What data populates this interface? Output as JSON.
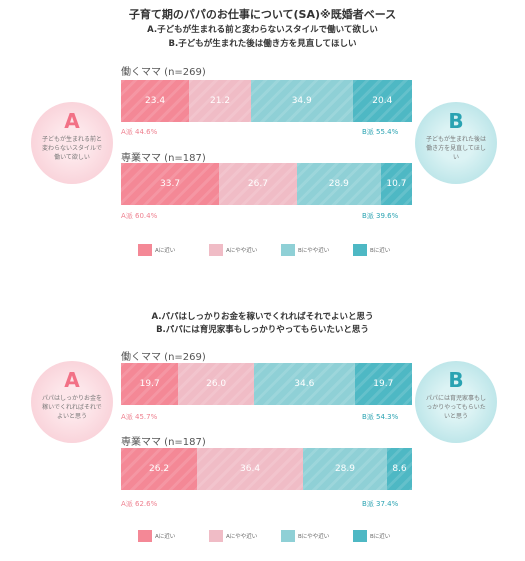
{
  "title": "子育て期のパパのお仕事について(SA)※既婚者ベース",
  "colors": {
    "a_close": "#f48896",
    "a_rather": "#f0bcc6",
    "b_rather": "#8fd0d6",
    "b_close": "#4eb8c4"
  },
  "legend": [
    "Aに近い",
    "Aにやや近い",
    "Bにやや近い",
    "Bに近い"
  ],
  "chart_data": [
    {
      "type": "bar",
      "stacked": true,
      "orientation": "horizontal",
      "subtitle_a": "A.子どもが生まれる前と変わらないスタイルで働いて欲しい",
      "subtitle_b": "B.子どもが生まれた後は働き方を見直してほしい",
      "bubble_a": {
        "letter": "A",
        "text": "子どもが生まれる前と変わらないスタイルで働いて欲しい"
      },
      "bubble_b": {
        "letter": "B",
        "text": "子どもが生まれた後は働き方を見直してほしい"
      },
      "series": [
        "Aに近い",
        "Aにやや近い",
        "Bにやや近い",
        "Bに近い"
      ],
      "groups": [
        {
          "label": "働くママ (n=269)",
          "values": [
            23.4,
            21.2,
            34.9,
            20.4
          ],
          "a_label": "A派 44.6%",
          "b_label": "B派 55.4%"
        },
        {
          "label": "専業ママ (n=187)",
          "values": [
            33.7,
            26.7,
            28.9,
            10.7
          ],
          "a_label": "A派 60.4%",
          "b_label": "B派 39.6%"
        }
      ]
    },
    {
      "type": "bar",
      "stacked": true,
      "orientation": "horizontal",
      "subtitle_a": "A.パパはしっかりお金を稼いでくれればそれでよいと思う",
      "subtitle_b": "B.パパには育児家事もしっかりやってもらいたいと思う",
      "bubble_a": {
        "letter": "A",
        "text": "パパはしっかりお金を稼いでくれればそれでよいと思う"
      },
      "bubble_b": {
        "letter": "B",
        "text": "パパには育児家事もしっかりやってもらいたいと思う"
      },
      "series": [
        "Aに近い",
        "Aにやや近い",
        "Bにやや近い",
        "Bに近い"
      ],
      "groups": [
        {
          "label": "働くママ (n=269)",
          "values": [
            19.7,
            26.0,
            34.6,
            19.7
          ],
          "a_label": "A派 45.7%",
          "b_label": "B派 54.3%"
        },
        {
          "label": "専業ママ (n=187)",
          "values": [
            26.2,
            36.4,
            28.9,
            8.6
          ],
          "a_label": "A派 62.6%",
          "b_label": "B派 37.4%"
        }
      ]
    }
  ]
}
